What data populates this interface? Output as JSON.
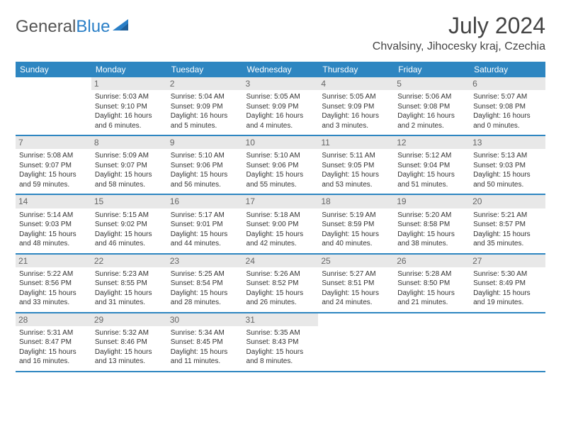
{
  "brand": {
    "part1": "General",
    "part2": "Blue"
  },
  "title": "July 2024",
  "location": "Chvalsiny, Jihocesky kraj, Czechia",
  "weekdays": [
    "Sunday",
    "Monday",
    "Tuesday",
    "Wednesday",
    "Thursday",
    "Friday",
    "Saturday"
  ],
  "colors": {
    "header_bg": "#2e86c1",
    "header_text": "#ffffff",
    "daynum_bg": "#e8e8e8",
    "row_divider": "#2e86c1",
    "text": "#333333",
    "brand_gray": "#555555",
    "brand_blue": "#2a7fc7"
  },
  "weeks": [
    [
      null,
      {
        "n": "1",
        "sr": "5:03 AM",
        "ss": "9:10 PM",
        "dl": "16 hours and 6 minutes."
      },
      {
        "n": "2",
        "sr": "5:04 AM",
        "ss": "9:09 PM",
        "dl": "16 hours and 5 minutes."
      },
      {
        "n": "3",
        "sr": "5:05 AM",
        "ss": "9:09 PM",
        "dl": "16 hours and 4 minutes."
      },
      {
        "n": "4",
        "sr": "5:05 AM",
        "ss": "9:09 PM",
        "dl": "16 hours and 3 minutes."
      },
      {
        "n": "5",
        "sr": "5:06 AM",
        "ss": "9:08 PM",
        "dl": "16 hours and 2 minutes."
      },
      {
        "n": "6",
        "sr": "5:07 AM",
        "ss": "9:08 PM",
        "dl": "16 hours and 0 minutes."
      }
    ],
    [
      {
        "n": "7",
        "sr": "5:08 AM",
        "ss": "9:07 PM",
        "dl": "15 hours and 59 minutes."
      },
      {
        "n": "8",
        "sr": "5:09 AM",
        "ss": "9:07 PM",
        "dl": "15 hours and 58 minutes."
      },
      {
        "n": "9",
        "sr": "5:10 AM",
        "ss": "9:06 PM",
        "dl": "15 hours and 56 minutes."
      },
      {
        "n": "10",
        "sr": "5:10 AM",
        "ss": "9:06 PM",
        "dl": "15 hours and 55 minutes."
      },
      {
        "n": "11",
        "sr": "5:11 AM",
        "ss": "9:05 PM",
        "dl": "15 hours and 53 minutes."
      },
      {
        "n": "12",
        "sr": "5:12 AM",
        "ss": "9:04 PM",
        "dl": "15 hours and 51 minutes."
      },
      {
        "n": "13",
        "sr": "5:13 AM",
        "ss": "9:03 PM",
        "dl": "15 hours and 50 minutes."
      }
    ],
    [
      {
        "n": "14",
        "sr": "5:14 AM",
        "ss": "9:03 PM",
        "dl": "15 hours and 48 minutes."
      },
      {
        "n": "15",
        "sr": "5:15 AM",
        "ss": "9:02 PM",
        "dl": "15 hours and 46 minutes."
      },
      {
        "n": "16",
        "sr": "5:17 AM",
        "ss": "9:01 PM",
        "dl": "15 hours and 44 minutes."
      },
      {
        "n": "17",
        "sr": "5:18 AM",
        "ss": "9:00 PM",
        "dl": "15 hours and 42 minutes."
      },
      {
        "n": "18",
        "sr": "5:19 AM",
        "ss": "8:59 PM",
        "dl": "15 hours and 40 minutes."
      },
      {
        "n": "19",
        "sr": "5:20 AM",
        "ss": "8:58 PM",
        "dl": "15 hours and 38 minutes."
      },
      {
        "n": "20",
        "sr": "5:21 AM",
        "ss": "8:57 PM",
        "dl": "15 hours and 35 minutes."
      }
    ],
    [
      {
        "n": "21",
        "sr": "5:22 AM",
        "ss": "8:56 PM",
        "dl": "15 hours and 33 minutes."
      },
      {
        "n": "22",
        "sr": "5:23 AM",
        "ss": "8:55 PM",
        "dl": "15 hours and 31 minutes."
      },
      {
        "n": "23",
        "sr": "5:25 AM",
        "ss": "8:54 PM",
        "dl": "15 hours and 28 minutes."
      },
      {
        "n": "24",
        "sr": "5:26 AM",
        "ss": "8:52 PM",
        "dl": "15 hours and 26 minutes."
      },
      {
        "n": "25",
        "sr": "5:27 AM",
        "ss": "8:51 PM",
        "dl": "15 hours and 24 minutes."
      },
      {
        "n": "26",
        "sr": "5:28 AM",
        "ss": "8:50 PM",
        "dl": "15 hours and 21 minutes."
      },
      {
        "n": "27",
        "sr": "5:30 AM",
        "ss": "8:49 PM",
        "dl": "15 hours and 19 minutes."
      }
    ],
    [
      {
        "n": "28",
        "sr": "5:31 AM",
        "ss": "8:47 PM",
        "dl": "15 hours and 16 minutes."
      },
      {
        "n": "29",
        "sr": "5:32 AM",
        "ss": "8:46 PM",
        "dl": "15 hours and 13 minutes."
      },
      {
        "n": "30",
        "sr": "5:34 AM",
        "ss": "8:45 PM",
        "dl": "15 hours and 11 minutes."
      },
      {
        "n": "31",
        "sr": "5:35 AM",
        "ss": "8:43 PM",
        "dl": "15 hours and 8 minutes."
      },
      null,
      null,
      null
    ]
  ]
}
